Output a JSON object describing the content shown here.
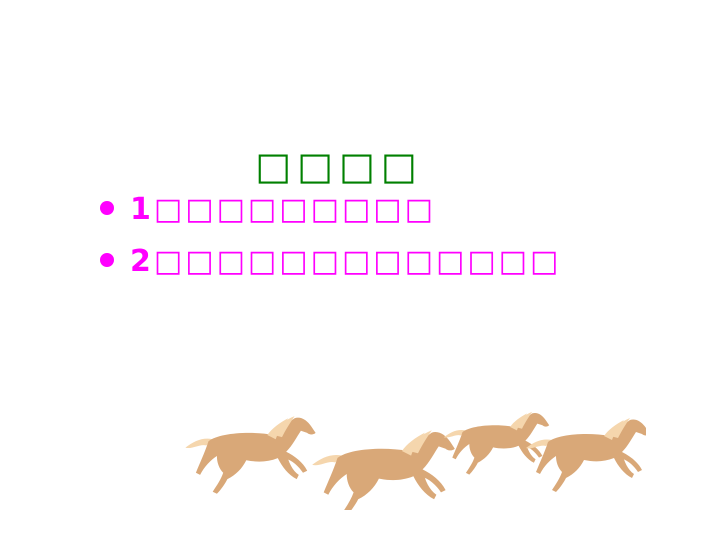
{
  "slide": {
    "title": "□□□□",
    "bullets": [
      {
        "number": "1",
        "text": "□□□□□□□□□"
      },
      {
        "number": "2",
        "text": "□□□□□□□□□□□□□"
      }
    ]
  },
  "colors": {
    "title": "#008000",
    "bullet_text": "#ff00ff",
    "horse_body": "#d9a878",
    "horse_mane": "#f5d6ad"
  },
  "decoration": {
    "image": "running-horses"
  }
}
